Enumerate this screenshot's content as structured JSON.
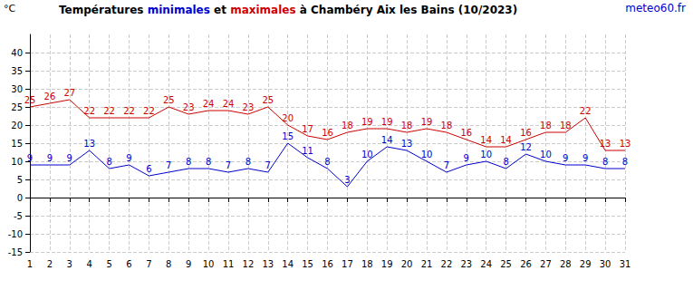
{
  "chart_data": {
    "type": "line",
    "title": "Températures minimales et maximales à Chambéry Aix les Bains (10/2023)",
    "annotations": [
      "meteo60.fr"
    ],
    "y_label": "°C",
    "categories": [
      "1",
      "2",
      "3",
      "4",
      "5",
      "6",
      "7",
      "8",
      "9",
      "10",
      "11",
      "12",
      "13",
      "14",
      "15",
      "16",
      "17",
      "18",
      "19",
      "20",
      "21",
      "22",
      "23",
      "24",
      "25",
      "26",
      "27",
      "28",
      "29",
      "30",
      "31"
    ],
    "series": [
      {
        "name": "minimales",
        "color": "#0000cc",
        "values": [
          9,
          9,
          9,
          13,
          8,
          9,
          6,
          7,
          8,
          8,
          7,
          8,
          7,
          15,
          11,
          8,
          3,
          10,
          14,
          13,
          10,
          7,
          9,
          10,
          8,
          12,
          10,
          9,
          9,
          8,
          8
        ]
      },
      {
        "name": "maximales",
        "color": "#cc0000",
        "values": [
          25,
          26,
          27,
          22,
          22,
          22,
          22,
          25,
          23,
          24,
          24,
          23,
          25,
          20,
          17,
          16,
          18,
          19,
          19,
          18,
          19,
          18,
          16,
          14,
          14,
          16,
          18,
          18,
          22,
          13,
          13
        ]
      }
    ],
    "ylim": [
      -15,
      45
    ],
    "yticks": [
      -15,
      -10,
      -5,
      0,
      5,
      10,
      15,
      20,
      25,
      30,
      35,
      40
    ],
    "grid": true,
    "data_labels": true,
    "marker": "none"
  }
}
